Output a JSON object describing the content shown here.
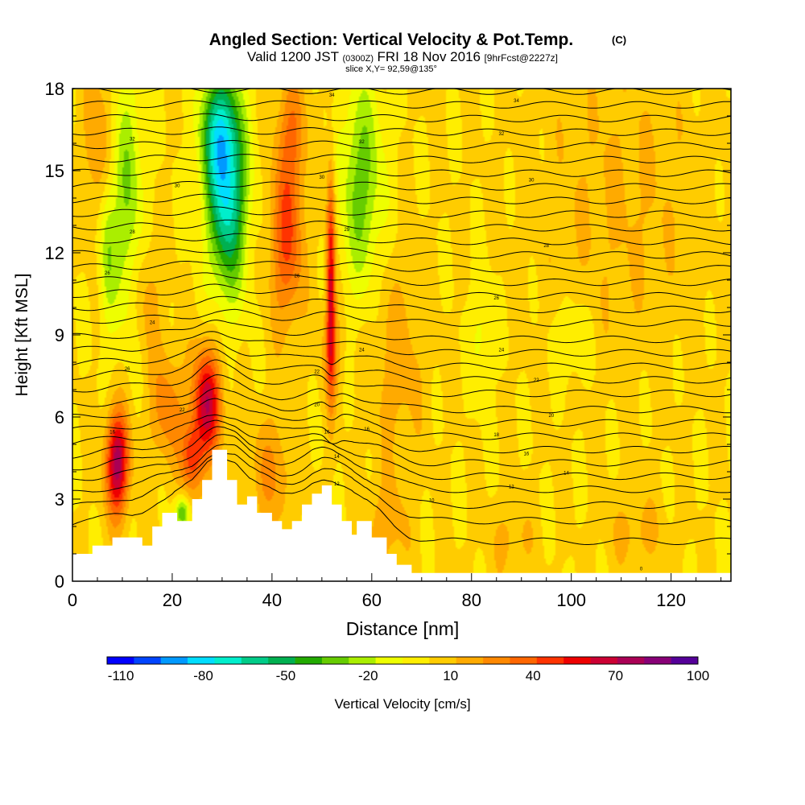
{
  "title": {
    "main": "Angled Section: Vertical Velocity & Pot.Temp.",
    "main_units": "(C)",
    "valid_prefix": "Valid 1200 JST",
    "valid_utc": "(0300Z)",
    "valid_date": "FRI 18 Nov 2016",
    "valid_fcst": "[9hrFcst@2227z]",
    "slice": "slice X,Y= 92,59@135°"
  },
  "chart_data": {
    "type": "heatmap",
    "xlabel": "Distance [nm]",
    "ylabel": "Height [Kft MSL]",
    "xlim": [
      0,
      132
    ],
    "ylim": [
      0,
      18
    ],
    "xticks": [
      0,
      20,
      40,
      60,
      80,
      100,
      120
    ],
    "yticks": [
      0,
      3,
      6,
      9,
      12,
      15,
      18
    ],
    "colorbar": {
      "label": "Vertical Velocity [cm/s]",
      "min": -115,
      "max": 100,
      "tick_labels": [
        "-110",
        "-80",
        "-50",
        "-20",
        "10",
        "40",
        "70",
        "100"
      ],
      "tick_values": [
        -110,
        -80,
        -50,
        -20,
        10,
        40,
        70,
        100
      ],
      "colors": [
        "#0000ff",
        "#0044ff",
        "#0099ff",
        "#00ddff",
        "#00eecc",
        "#00cc88",
        "#00b050",
        "#22aa00",
        "#66cc00",
        "#aaee00",
        "#eeff00",
        "#ffee00",
        "#ffcc00",
        "#ffaa00",
        "#ff8800",
        "#ff6600",
        "#ff3300",
        "#ee0000",
        "#cc0033",
        "#aa0055",
        "#880077",
        "#550099"
      ]
    },
    "background_value": 3,
    "anomalies": [
      {
        "x": 9,
        "y": 4.3,
        "sx": 1.6,
        "sy": 1.3,
        "v": 75
      },
      {
        "x": 27,
        "y": 6.5,
        "sx": 2.0,
        "sy": 1.4,
        "v": 65
      },
      {
        "x": 24,
        "y": 4.5,
        "sx": 1.5,
        "sy": 0.9,
        "v": 40
      },
      {
        "x": 19,
        "y": 6.3,
        "sx": 2.5,
        "sy": 1.5,
        "v": 25
      },
      {
        "x": 31,
        "y": 14.2,
        "sx": 2.7,
        "sy": 2.5,
        "v": -75
      },
      {
        "x": 29,
        "y": 16.5,
        "sx": 2.5,
        "sy": 1.5,
        "v": -45
      },
      {
        "x": 11,
        "y": 14,
        "sx": 2.2,
        "sy": 3.2,
        "v": -30
      },
      {
        "x": 7,
        "y": 12,
        "sx": 1.2,
        "sy": 2,
        "v": -25
      },
      {
        "x": 43,
        "y": 12.5,
        "sx": 2.3,
        "sy": 2.2,
        "v": 40
      },
      {
        "x": 51.8,
        "y": 11,
        "sx": 0.6,
        "sy": 2.8,
        "v": 60
      },
      {
        "x": 58,
        "y": 14.5,
        "sx": 3.0,
        "sy": 2.8,
        "v": -35
      },
      {
        "x": 52,
        "y": 8.5,
        "sx": 1.5,
        "sy": 1.2,
        "v": 20
      },
      {
        "x": 65,
        "y": 8,
        "sx": 4,
        "sy": 2.5,
        "v": 15
      },
      {
        "x": 82,
        "y": 9,
        "sx": 1.5,
        "sy": 1.5,
        "v": -15
      },
      {
        "x": 100,
        "y": 8.8,
        "sx": 2.5,
        "sy": 1.0,
        "v": -15
      },
      {
        "x": 110,
        "y": 14,
        "sx": 12,
        "sy": 4,
        "v": 10
      },
      {
        "x": 40,
        "y": 4,
        "sx": 3,
        "sy": 1.5,
        "v": 20
      },
      {
        "x": 44,
        "y": 16.5,
        "sx": 2,
        "sy": 1.5,
        "v": 25
      },
      {
        "x": 5,
        "y": 16,
        "sx": 2,
        "sy": 2,
        "v": 20
      },
      {
        "x": 15,
        "y": 10.5,
        "sx": 2,
        "sy": 1.5,
        "v": 15
      },
      {
        "x": 22,
        "y": 2.5,
        "sx": 1,
        "sy": 0.4,
        "v": -40
      },
      {
        "x": 63,
        "y": 2,
        "sx": 3,
        "sy": 1.2,
        "v": 15
      },
      {
        "x": 88,
        "y": 1.5,
        "sx": 3,
        "sy": 1,
        "v": 12
      },
      {
        "x": 113,
        "y": 1.8,
        "sx": 4,
        "sy": 1,
        "v": 12
      }
    ],
    "terrain": [
      [
        0,
        1.0
      ],
      [
        4,
        1.0
      ],
      [
        4,
        1.3
      ],
      [
        8,
        1.3
      ],
      [
        8,
        1.6
      ],
      [
        14,
        1.6
      ],
      [
        14,
        1.3
      ],
      [
        16,
        1.3
      ],
      [
        16,
        2.0
      ],
      [
        18,
        2.0
      ],
      [
        18,
        2.5
      ],
      [
        21,
        2.5
      ],
      [
        21,
        2.2
      ],
      [
        24,
        2.2
      ],
      [
        24,
        3.0
      ],
      [
        26,
        3.0
      ],
      [
        26,
        3.7
      ],
      [
        28,
        3.7
      ],
      [
        28,
        4.8
      ],
      [
        31,
        4.8
      ],
      [
        31,
        3.7
      ],
      [
        33,
        3.7
      ],
      [
        33,
        2.8
      ],
      [
        35,
        2.8
      ],
      [
        35,
        3.1
      ],
      [
        37,
        3.1
      ],
      [
        37,
        2.5
      ],
      [
        40,
        2.5
      ],
      [
        40,
        2.2
      ],
      [
        42,
        2.2
      ],
      [
        42,
        1.9
      ],
      [
        44,
        1.9
      ],
      [
        44,
        2.2
      ],
      [
        46,
        2.2
      ],
      [
        46,
        2.8
      ],
      [
        48,
        2.8
      ],
      [
        48,
        3.2
      ],
      [
        50,
        3.2
      ],
      [
        50,
        3.5
      ],
      [
        52,
        3.5
      ],
      [
        52,
        2.8
      ],
      [
        54,
        2.8
      ],
      [
        54,
        2.2
      ],
      [
        56,
        2.2
      ],
      [
        56,
        1.7
      ],
      [
        57,
        1.7
      ],
      [
        57,
        2.2
      ],
      [
        60,
        2.2
      ],
      [
        60,
        1.6
      ],
      [
        63,
        1.6
      ],
      [
        63,
        1.0
      ],
      [
        65,
        1.0
      ],
      [
        65,
        0.6
      ],
      [
        68,
        0.6
      ],
      [
        68,
        0.3
      ],
      [
        132,
        0.3
      ]
    ],
    "isentropes": {
      "baselines": [
        1.2,
        2.0,
        2.6,
        3.2,
        3.7,
        4.2,
        4.7,
        5.2,
        5.7,
        6.2,
        6.8,
        7.3,
        7.8,
        8.3,
        8.8,
        9.4,
        9.9,
        10.4,
        10.9,
        11.4,
        11.9,
        12.4,
        12.9,
        13.4,
        13.9,
        14.4,
        14.9,
        15.4,
        15.9,
        16.4,
        16.9,
        17.4,
        17.9
      ],
      "labels": [
        {
          "x": 8,
          "y": 5.4,
          "text": "16"
        },
        {
          "x": 22,
          "y": 6.2,
          "text": "22"
        },
        {
          "x": 11,
          "y": 7.7,
          "text": "26"
        },
        {
          "x": 16,
          "y": 9.4,
          "text": "24"
        },
        {
          "x": 7,
          "y": 11.2,
          "text": "26"
        },
        {
          "x": 12,
          "y": 12.7,
          "text": "28"
        },
        {
          "x": 21,
          "y": 14.4,
          "text": "30"
        },
        {
          "x": 12,
          "y": 16.1,
          "text": "32"
        },
        {
          "x": 52,
          "y": 17.7,
          "text": "34"
        },
        {
          "x": 58,
          "y": 16.0,
          "text": "32"
        },
        {
          "x": 50,
          "y": 14.7,
          "text": "30"
        },
        {
          "x": 55,
          "y": 12.8,
          "text": "29"
        },
        {
          "x": 45,
          "y": 11.1,
          "text": "26"
        },
        {
          "x": 58,
          "y": 8.4,
          "text": "24"
        },
        {
          "x": 49,
          "y": 7.6,
          "text": "22"
        },
        {
          "x": 49,
          "y": 6.4,
          "text": "20"
        },
        {
          "x": 51,
          "y": 5.4,
          "text": "16"
        },
        {
          "x": 59,
          "y": 5.5,
          "text": "16"
        },
        {
          "x": 53,
          "y": 4.5,
          "text": "14"
        },
        {
          "x": 53,
          "y": 3.5,
          "text": "12"
        },
        {
          "x": 72,
          "y": 2.9,
          "text": "10"
        },
        {
          "x": 88,
          "y": 3.4,
          "text": "12"
        },
        {
          "x": 99,
          "y": 3.9,
          "text": "14"
        },
        {
          "x": 91,
          "y": 4.6,
          "text": "16"
        },
        {
          "x": 85,
          "y": 5.3,
          "text": "18"
        },
        {
          "x": 96,
          "y": 6.0,
          "text": "20"
        },
        {
          "x": 93,
          "y": 7.3,
          "text": "22"
        },
        {
          "x": 86,
          "y": 8.4,
          "text": "24"
        },
        {
          "x": 85,
          "y": 10.3,
          "text": "26"
        },
        {
          "x": 95,
          "y": 12.2,
          "text": "28"
        },
        {
          "x": 92,
          "y": 14.6,
          "text": "30"
        },
        {
          "x": 86,
          "y": 16.3,
          "text": "32"
        },
        {
          "x": 89,
          "y": 17.5,
          "text": "34"
        },
        {
          "x": 114,
          "y": 0.4,
          "text": "0"
        }
      ]
    }
  }
}
